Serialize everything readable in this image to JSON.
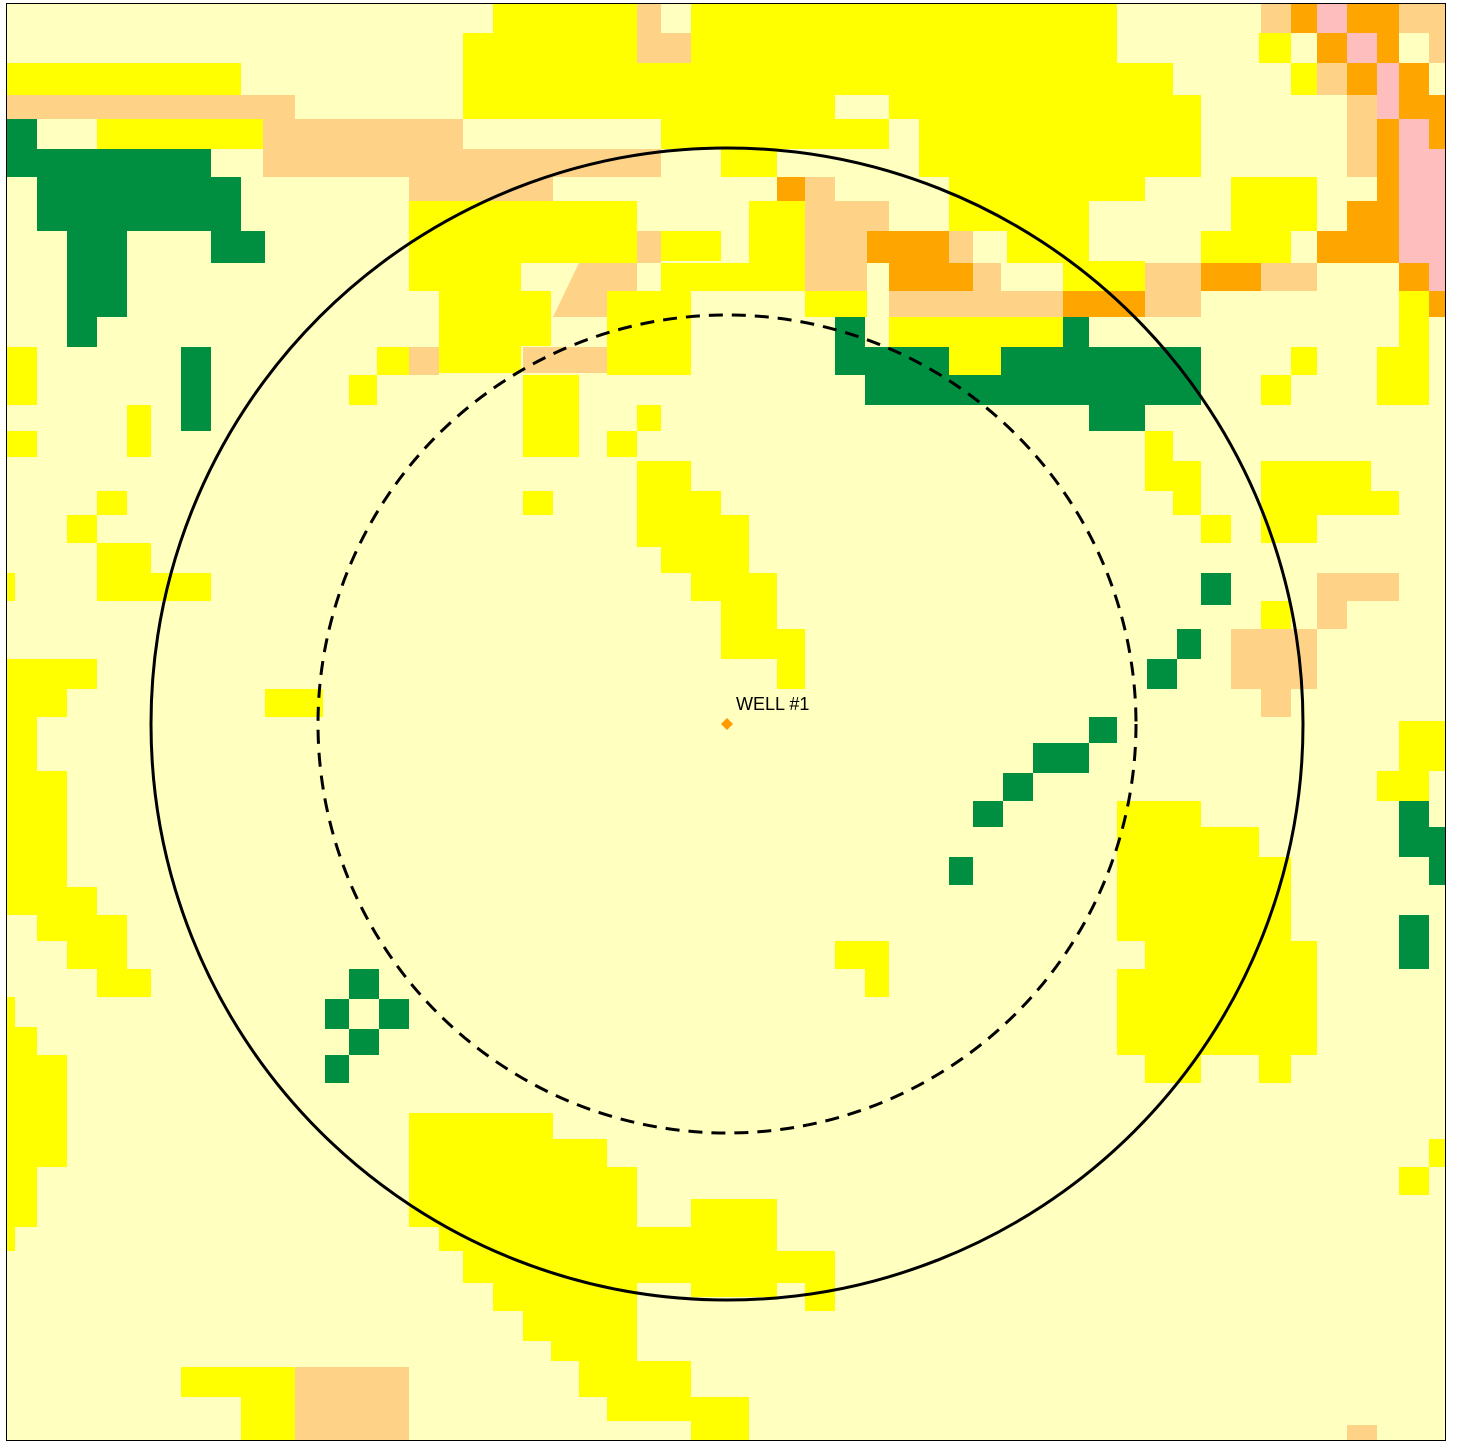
{
  "map": {
    "colors": {
      "background": "#ffffc0",
      "yellow": "#ffff00",
      "tan": "#ffd387",
      "orange": "#ffa500",
      "pink": "#ffbebe",
      "green": "#008f41"
    },
    "well": {
      "label": "WELL #1",
      "marker_color": "#ff9a00"
    },
    "rings": [
      {
        "name": "outer-ring",
        "style": "solid"
      },
      {
        "name": "inner-ring",
        "style": "dashed"
      }
    ]
  }
}
